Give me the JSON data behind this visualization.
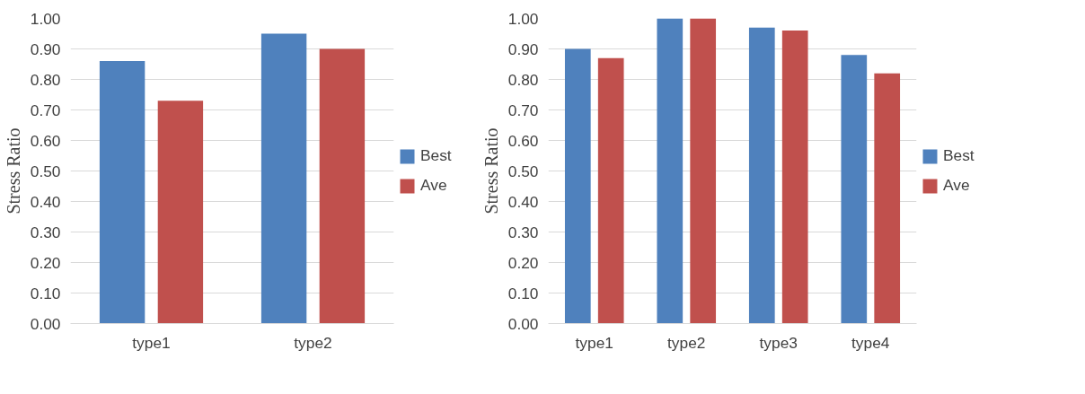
{
  "chart_data": [
    {
      "type": "bar",
      "ylabel": "Stress Ratio",
      "categories": [
        "type1",
        "type2"
      ],
      "series": [
        {
          "name": "Best",
          "color": "#4f81bd",
          "values": [
            0.86,
            0.95
          ]
        },
        {
          "name": "Ave",
          "color": "#c0504d",
          "values": [
            0.73,
            0.9
          ]
        }
      ],
      "ylim": [
        0,
        1
      ],
      "yticks": [
        {
          "value": 0,
          "label": "0.00"
        },
        {
          "value": 0.1,
          "label": "0.10"
        },
        {
          "value": 0.2,
          "label": "0.20"
        },
        {
          "value": 0.3,
          "label": "0.30"
        },
        {
          "value": 0.4,
          "label": "0.40"
        },
        {
          "value": 0.5,
          "label": "0.50"
        },
        {
          "value": 0.6,
          "label": "0.60"
        },
        {
          "value": 0.7,
          "label": "0.70"
        },
        {
          "value": 0.8,
          "label": "0.80"
        },
        {
          "value": 0.9,
          "label": "0.90"
        },
        {
          "value": 1,
          "label": "1.00"
        }
      ],
      "grid": "y",
      "legend": "right"
    },
    {
      "type": "bar",
      "ylabel": "Stress Ratio",
      "categories": [
        "type1",
        "type2",
        "type3",
        "type4"
      ],
      "series": [
        {
          "name": "Best",
          "color": "#4f81bd",
          "values": [
            0.9,
            1.0,
            0.97,
            0.88
          ]
        },
        {
          "name": "Ave",
          "color": "#c0504d",
          "values": [
            0.87,
            1.0,
            0.96,
            0.82
          ]
        }
      ],
      "ylim": [
        0,
        1
      ],
      "yticks": [
        {
          "value": 0,
          "label": "0.00"
        },
        {
          "value": 0.1,
          "label": "0.10"
        },
        {
          "value": 0.2,
          "label": "0.20"
        },
        {
          "value": 0.3,
          "label": "0.30"
        },
        {
          "value": 0.4,
          "label": "0.40"
        },
        {
          "value": 0.5,
          "label": "0.50"
        },
        {
          "value": 0.6,
          "label": "0.60"
        },
        {
          "value": 0.7,
          "label": "0.70"
        },
        {
          "value": 0.8,
          "label": "0.80"
        },
        {
          "value": 0.9,
          "label": "0.90"
        },
        {
          "value": 1,
          "label": "1.00"
        }
      ],
      "grid": "y",
      "legend": "right"
    }
  ]
}
